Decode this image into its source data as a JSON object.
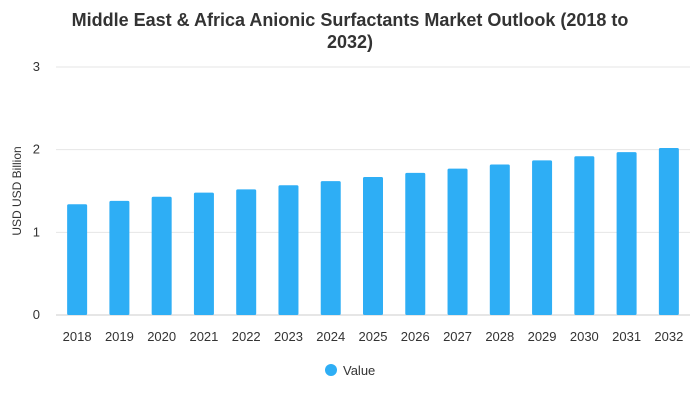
{
  "chart_data": {
    "type": "bar",
    "title_line1": "Middle East & Africa Anionic Surfactants Market Outlook (2018 to",
    "title_line2": "2032)",
    "xlabel": "",
    "ylabel": "USD USD Billion",
    "ylim": [
      0,
      3
    ],
    "yticks": [
      "0",
      "1",
      "2",
      "3"
    ],
    "grid": true,
    "legend_position": "bottom",
    "categories": [
      "2018",
      "2019",
      "2020",
      "2021",
      "2022",
      "2023",
      "2024",
      "2025",
      "2026",
      "2027",
      "2028",
      "2029",
      "2030",
      "2031",
      "2032"
    ],
    "series": [
      {
        "name": "Value",
        "color": "#2eaef5",
        "values": [
          1.34,
          1.38,
          1.43,
          1.48,
          1.52,
          1.57,
          1.62,
          1.67,
          1.72,
          1.77,
          1.82,
          1.87,
          1.92,
          1.97,
          2.02
        ]
      }
    ]
  }
}
